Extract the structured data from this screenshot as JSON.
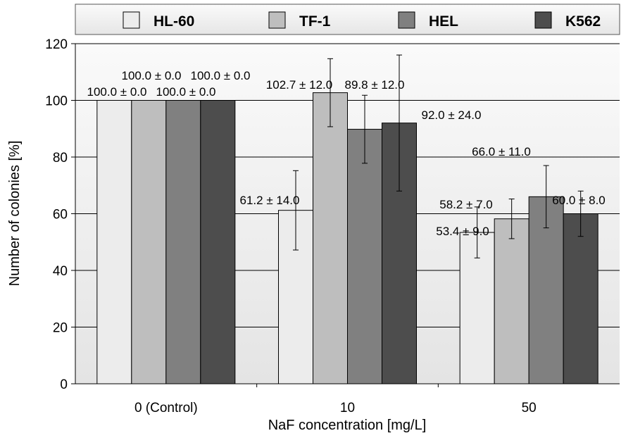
{
  "chart_data": {
    "type": "bar",
    "xlabel": "NaF concentration [mg/L]",
    "ylabel": "Number of colonies [%]",
    "ylim": [
      0,
      120
    ],
    "yticks": [
      0,
      20,
      40,
      60,
      80,
      100,
      120
    ],
    "categories": [
      "0 (Control)",
      "10",
      "50"
    ],
    "legend_position": "top",
    "grid": true,
    "series": [
      {
        "name": "HL-60",
        "color": "#ececec",
        "values": [
          100.0,
          61.2,
          53.4
        ],
        "errors": [
          0.0,
          14.0,
          9.0
        ],
        "labels": [
          "100.0 ± 0.0",
          "61.2 ± 14.0",
          "53.4 ± 9.0"
        ]
      },
      {
        "name": "TF-1",
        "color": "#bebebe",
        "values": [
          100.0,
          102.7,
          58.2
        ],
        "errors": [
          0.0,
          12.0,
          7.0
        ],
        "labels": [
          "100.0 ± 0.0",
          "102.7 ± 12.0",
          "58.2 ± 7.0"
        ]
      },
      {
        "name": "HEL",
        "color": "#808080",
        "values": [
          100.0,
          89.8,
          66.0
        ],
        "errors": [
          0.0,
          12.0,
          11.0
        ],
        "labels": [
          "100.0 ± 0.0",
          "89.8 ± 12.0",
          "66.0 ± 11.0"
        ]
      },
      {
        "name": "K562",
        "color": "#4d4d4d",
        "values": [
          100.0,
          92.0,
          60.0
        ],
        "errors": [
          0.0,
          24.0,
          8.0
        ],
        "labels": [
          "100.0 ± 0.0",
          "92.0 ± 24.0",
          "60.0 ± 8.0"
        ]
      }
    ]
  }
}
